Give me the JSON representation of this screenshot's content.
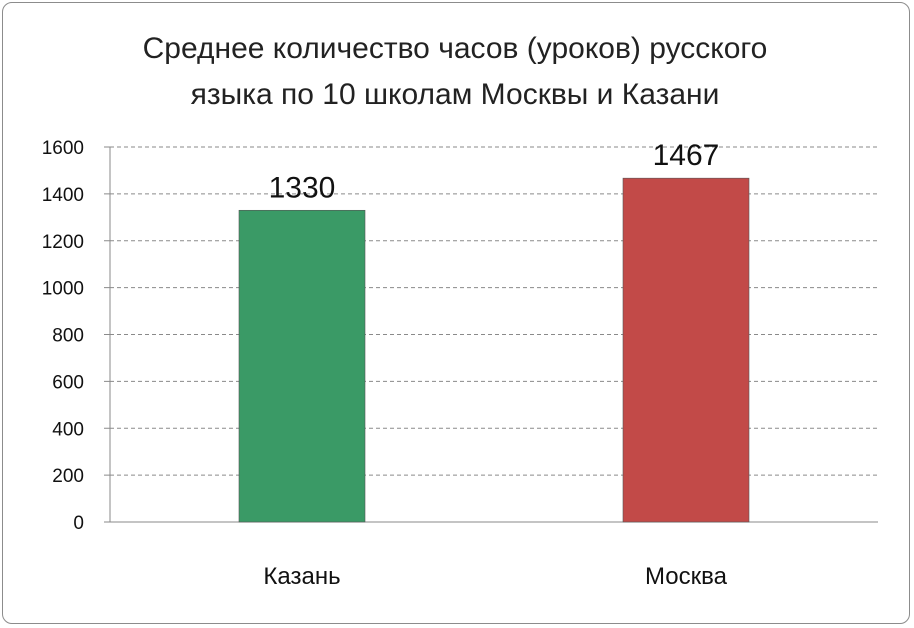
{
  "chart_data": {
    "type": "bar",
    "title_line1": "Среднее количество часов (уроков) русского",
    "title_line2": "языка  по  10 школам Москвы и Казани",
    "categories": [
      "Казань",
      "Москва"
    ],
    "values": [
      1330,
      1467
    ],
    "data_labels": [
      "1330",
      "1467"
    ],
    "colors": [
      "#3a9a66",
      "#c24a48"
    ],
    "yticks": [
      "0",
      "200",
      "400",
      "600",
      "800",
      "1000",
      "1200",
      "1400",
      "1600"
    ],
    "ylim": [
      0,
      1600
    ],
    "grid": "dashed horizontal",
    "legend": "none"
  }
}
